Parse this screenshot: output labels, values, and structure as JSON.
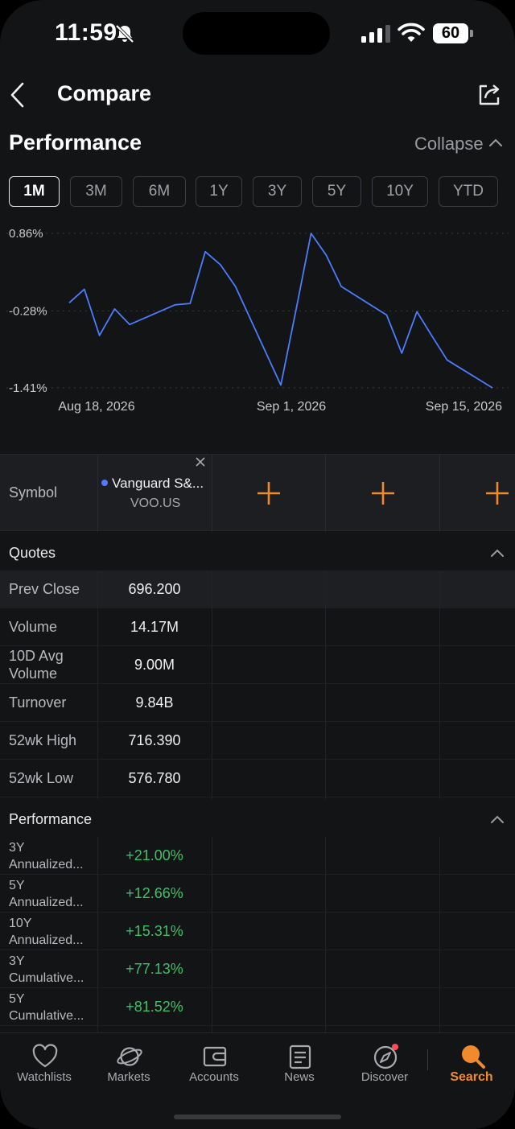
{
  "status_bar": {
    "time": "11:59",
    "battery": "60"
  },
  "header": {
    "title": "Compare"
  },
  "performance_header": {
    "title": "Performance",
    "collapse_label": "Collapse",
    "periods": [
      "1M",
      "3M",
      "6M",
      "1Y",
      "3Y",
      "5Y",
      "10Y",
      "YTD"
    ],
    "active_period": "1M"
  },
  "chart_data": {
    "type": "line",
    "y_tick_labels": [
      "0.86%",
      "-0.28%",
      "-1.41%"
    ],
    "y_ticks": [
      0.86,
      -0.28,
      -1.41
    ],
    "ylim": [
      -1.41,
      0.86
    ],
    "x_tick_labels": [
      "Aug 18, 2026",
      "Sep 1, 2026",
      "Sep 15, 2026"
    ],
    "series": [
      {
        "color": "#4d7cfe",
        "x": [
          "2026-08-18",
          "2026-08-19",
          "2026-08-20",
          "2026-08-21",
          "2026-08-22",
          "2026-08-25",
          "2026-08-26",
          "2026-08-27",
          "2026-08-28",
          "2026-08-29",
          "2026-09-01",
          "2026-09-02",
          "2026-09-03",
          "2026-09-04",
          "2026-09-05",
          "2026-09-08",
          "2026-09-09",
          "2026-09-10",
          "2026-09-11",
          "2026-09-12",
          "2026-09-15"
        ],
        "values": [
          -0.16,
          0.04,
          -0.64,
          -0.25,
          -0.48,
          -0.19,
          -0.17,
          0.59,
          0.4,
          0.08,
          -1.37,
          -0.27,
          0.86,
          0.54,
          0.08,
          -0.34,
          -0.9,
          -0.29,
          -0.65,
          -1.0,
          -1.41
        ]
      }
    ],
    "grid": true
  },
  "symbol_row": {
    "label": "Symbol",
    "symbols": [
      {
        "name": "Vanguard S&...",
        "code": "VOO.US"
      }
    ],
    "add_slots": 3
  },
  "quotes": {
    "title": "Quotes",
    "rows": [
      {
        "label": "Prev Close",
        "value": "696.200"
      },
      {
        "label": "Volume",
        "value": "14.17M"
      },
      {
        "label": "10D Avg Volume",
        "label_lines": [
          "10D Avg",
          "Volume"
        ],
        "value": "9.00M"
      },
      {
        "label": "Turnover",
        "value": "9.84B"
      },
      {
        "label": "52wk High",
        "value": "716.390"
      },
      {
        "label": "52wk Low",
        "value": "576.780"
      }
    ]
  },
  "performance": {
    "title": "Performance",
    "rows": [
      {
        "label_lines": [
          "3Y",
          "Annualized..."
        ],
        "value": "+21.00%"
      },
      {
        "label_lines": [
          "5Y",
          "Annualized..."
        ],
        "value": "+12.66%"
      },
      {
        "label_lines": [
          "10Y",
          "Annualized..."
        ],
        "value": "+15.31%"
      },
      {
        "label_lines": [
          "3Y",
          "Cumulative..."
        ],
        "value": "+77.13%"
      },
      {
        "label_lines": [
          "5Y",
          "Cumulative..."
        ],
        "value": "+81.52%"
      }
    ]
  },
  "tabbar": {
    "items": [
      {
        "label": "Watchlists",
        "icon": "heart-icon"
      },
      {
        "label": "Markets",
        "icon": "planet-icon"
      },
      {
        "label": "Accounts",
        "icon": "wallet-icon"
      },
      {
        "label": "News",
        "icon": "news-icon"
      },
      {
        "label": "Discover",
        "icon": "compass-icon"
      },
      {
        "label": "Search",
        "icon": "search-icon"
      }
    ],
    "active": "Search",
    "accent": "#f08a2c"
  }
}
